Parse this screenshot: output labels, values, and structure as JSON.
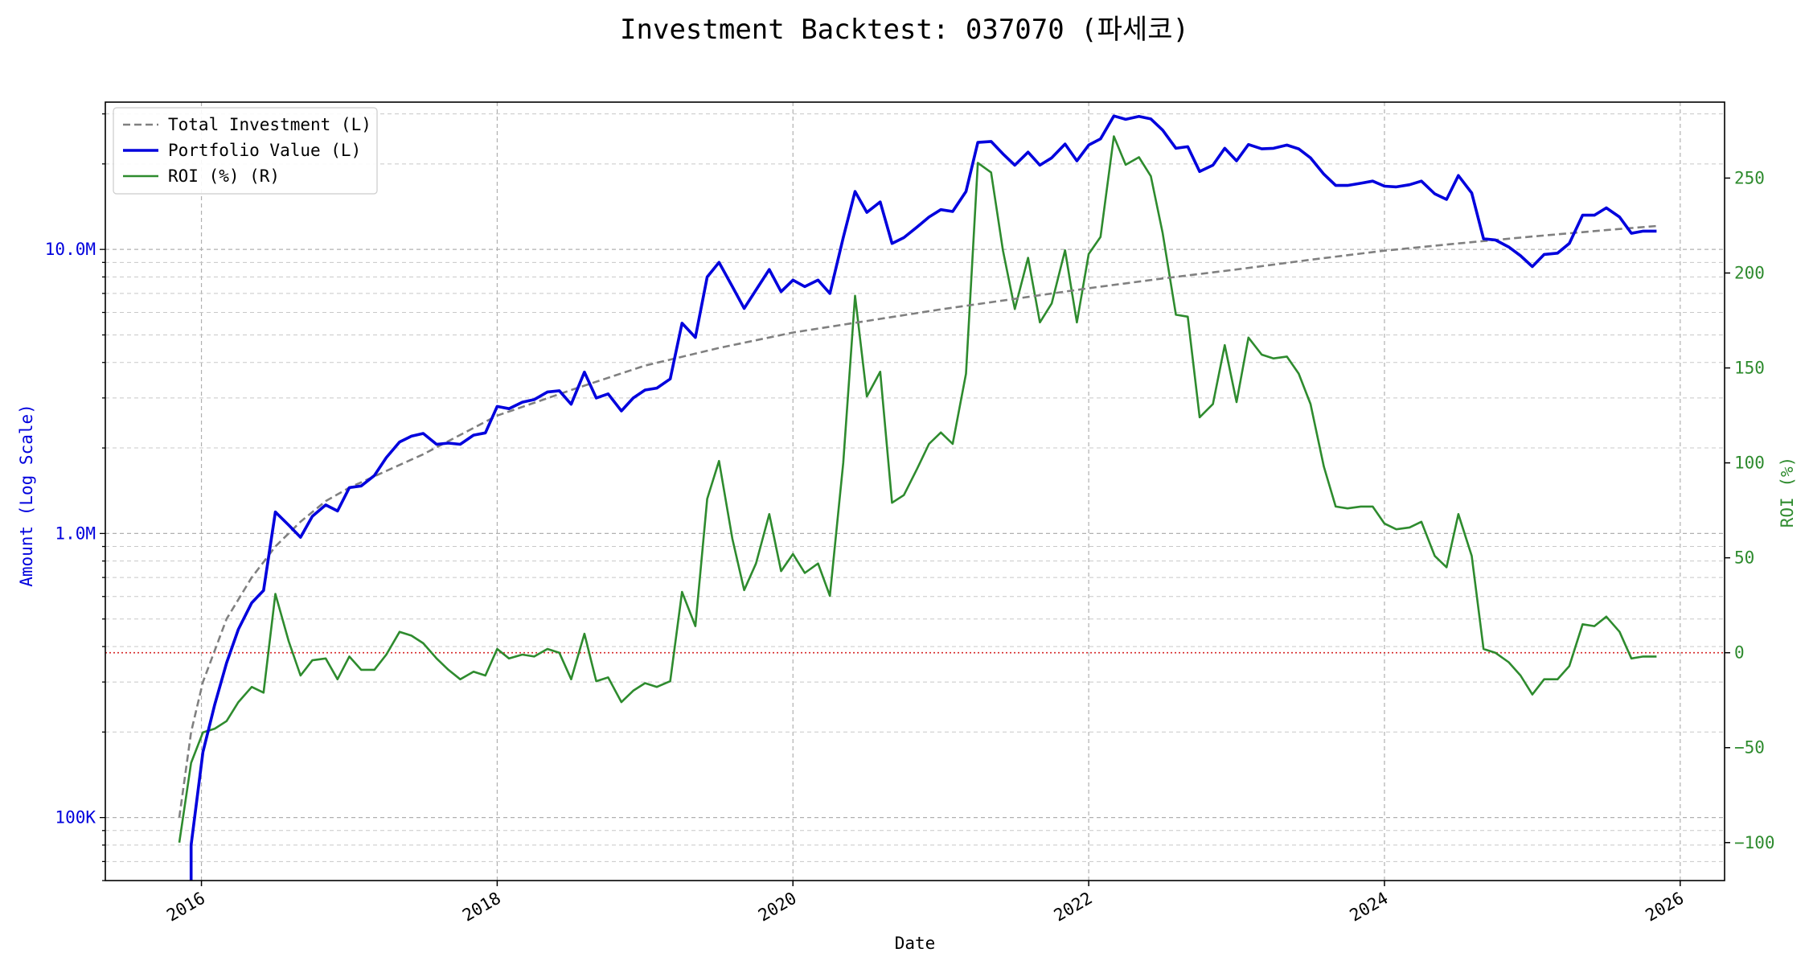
{
  "chart_data": {
    "type": "line",
    "title": "Investment Backtest: 037070 (파세코)",
    "xlabel": "Date",
    "ylabel_left": "Amount (Log Scale)",
    "ylabel_right": "ROI (%)",
    "y_left_scale": "log",
    "y_left_range": [
      60000,
      33000000
    ],
    "y_right_range": [
      -120,
      290
    ],
    "x_range": [
      2015.35,
      2026.3
    ],
    "grid": true,
    "legend_position": "top-left",
    "x_ticks": [
      {
        "value": 2016,
        "label": "2016"
      },
      {
        "value": 2018,
        "label": "2018"
      },
      {
        "value": 2020,
        "label": "2020"
      },
      {
        "value": 2022,
        "label": "2022"
      },
      {
        "value": 2024,
        "label": "2024"
      },
      {
        "value": 2026,
        "label": "2026"
      }
    ],
    "y_left_ticks": [
      {
        "value": 100000,
        "label": "100K"
      },
      {
        "value": 1000000,
        "label": "1.0M"
      },
      {
        "value": 10000000,
        "label": "10.0M"
      }
    ],
    "y_right_ticks": [
      {
        "value": -100,
        "label": "−100"
      },
      {
        "value": -50,
        "label": "−50"
      },
      {
        "value": 0,
        "label": "0"
      },
      {
        "value": 50,
        "label": "50"
      },
      {
        "value": 100,
        "label": "100"
      },
      {
        "value": 150,
        "label": "150"
      },
      {
        "value": 200,
        "label": "200"
      },
      {
        "value": 250,
        "label": "250"
      }
    ],
    "zero_reference": {
      "value": 0,
      "color": "#d62728"
    },
    "series": [
      {
        "name": "Total Investment (L)",
        "axis": "left",
        "color": "#808080",
        "style": "dashed",
        "points": [
          [
            2015.85,
            100000
          ],
          [
            2015.93,
            200000
          ],
          [
            2016.01,
            300000
          ],
          [
            2016.17,
            500000
          ],
          [
            2016.34,
            700000
          ],
          [
            2016.5,
            900000
          ],
          [
            2016.67,
            1100000
          ],
          [
            2016.84,
            1300000
          ],
          [
            2017.0,
            1450000
          ],
          [
            2017.5,
            1900000
          ],
          [
            2018.0,
            2600000
          ],
          [
            2018.5,
            3200000
          ],
          [
            2019.0,
            3900000
          ],
          [
            2019.5,
            4500000
          ],
          [
            2020.0,
            5100000
          ],
          [
            2020.5,
            5600000
          ],
          [
            2021.0,
            6150000
          ],
          [
            2021.5,
            6700000
          ],
          [
            2022.0,
            7300000
          ],
          [
            2022.5,
            7900000
          ],
          [
            2023.0,
            8500000
          ],
          [
            2023.5,
            9200000
          ],
          [
            2024.0,
            9900000
          ],
          [
            2024.5,
            10500000
          ],
          [
            2025.0,
            11100000
          ],
          [
            2025.5,
            11700000
          ],
          [
            2025.85,
            12100000
          ]
        ]
      },
      {
        "name": "Portfolio Value (L)",
        "axis": "left",
        "color": "#0000dd",
        "style": "solid",
        "points": [
          [
            2015.93,
            50000
          ],
          [
            2015.93,
            80000
          ],
          [
            2016.01,
            170000
          ],
          [
            2016.09,
            250000
          ],
          [
            2016.17,
            350000
          ],
          [
            2016.25,
            460000
          ],
          [
            2016.34,
            570000
          ],
          [
            2016.42,
            630000
          ],
          [
            2016.5,
            1190000
          ],
          [
            2016.59,
            1070000
          ],
          [
            2016.67,
            970000
          ],
          [
            2016.75,
            1150000
          ],
          [
            2016.84,
            1260000
          ],
          [
            2016.92,
            1200000
          ],
          [
            2017.0,
            1450000
          ],
          [
            2017.08,
            1470000
          ],
          [
            2017.17,
            1600000
          ],
          [
            2017.25,
            1850000
          ],
          [
            2017.34,
            2100000
          ],
          [
            2017.42,
            2200000
          ],
          [
            2017.5,
            2250000
          ],
          [
            2017.59,
            2060000
          ],
          [
            2017.67,
            2080000
          ],
          [
            2017.75,
            2060000
          ],
          [
            2017.84,
            2220000
          ],
          [
            2017.92,
            2260000
          ],
          [
            2018.0,
            2800000
          ],
          [
            2018.08,
            2750000
          ],
          [
            2018.17,
            2900000
          ],
          [
            2018.25,
            2960000
          ],
          [
            2018.34,
            3150000
          ],
          [
            2018.42,
            3180000
          ],
          [
            2018.5,
            2850000
          ],
          [
            2018.59,
            3700000
          ],
          [
            2018.67,
            3000000
          ],
          [
            2018.75,
            3100000
          ],
          [
            2018.84,
            2700000
          ],
          [
            2018.92,
            3000000
          ],
          [
            2019.0,
            3200000
          ],
          [
            2019.08,
            3250000
          ],
          [
            2019.17,
            3500000
          ],
          [
            2019.25,
            5500000
          ],
          [
            2019.34,
            4900000
          ],
          [
            2019.42,
            8000000
          ],
          [
            2019.5,
            9000000
          ],
          [
            2019.59,
            7400000
          ],
          [
            2019.67,
            6200000
          ],
          [
            2019.75,
            7200000
          ],
          [
            2019.84,
            8500000
          ],
          [
            2019.92,
            7100000
          ],
          [
            2020.0,
            7800000
          ],
          [
            2020.08,
            7400000
          ],
          [
            2020.17,
            7800000
          ],
          [
            2020.25,
            7000000
          ],
          [
            2020.34,
            11000000
          ],
          [
            2020.42,
            16000000
          ],
          [
            2020.5,
            13500000
          ],
          [
            2020.59,
            14700000
          ],
          [
            2020.67,
            10500000
          ],
          [
            2020.75,
            11000000
          ],
          [
            2020.84,
            12000000
          ],
          [
            2020.92,
            13000000
          ],
          [
            2021.0,
            13800000
          ],
          [
            2021.08,
            13600000
          ],
          [
            2021.17,
            16000000
          ],
          [
            2021.25,
            23800000
          ],
          [
            2021.34,
            24000000
          ],
          [
            2021.42,
            21700000
          ],
          [
            2021.5,
            19800000
          ],
          [
            2021.59,
            22000000
          ],
          [
            2021.67,
            19800000
          ],
          [
            2021.75,
            21000000
          ],
          [
            2021.84,
            23500000
          ],
          [
            2021.92,
            20500000
          ],
          [
            2022.0,
            23300000
          ],
          [
            2022.08,
            24500000
          ],
          [
            2022.17,
            29500000
          ],
          [
            2022.25,
            28700000
          ],
          [
            2022.34,
            29400000
          ],
          [
            2022.42,
            28800000
          ],
          [
            2022.5,
            26300000
          ],
          [
            2022.59,
            22700000
          ],
          [
            2022.67,
            23000000
          ],
          [
            2022.75,
            18800000
          ],
          [
            2022.84,
            19800000
          ],
          [
            2022.92,
            22700000
          ],
          [
            2023.0,
            20500000
          ],
          [
            2023.08,
            23400000
          ],
          [
            2023.17,
            22600000
          ],
          [
            2023.25,
            22700000
          ],
          [
            2023.34,
            23300000
          ],
          [
            2023.42,
            22600000
          ],
          [
            2023.5,
            21000000
          ],
          [
            2023.59,
            18400000
          ],
          [
            2023.67,
            16800000
          ],
          [
            2023.75,
            16800000
          ],
          [
            2023.84,
            17100000
          ],
          [
            2023.92,
            17400000
          ],
          [
            2024.0,
            16700000
          ],
          [
            2024.08,
            16600000
          ],
          [
            2024.17,
            16900000
          ],
          [
            2024.25,
            17400000
          ],
          [
            2024.34,
            15700000
          ],
          [
            2024.42,
            15000000
          ],
          [
            2024.5,
            18200000
          ],
          [
            2024.59,
            15800000
          ],
          [
            2024.67,
            10900000
          ],
          [
            2024.75,
            10800000
          ],
          [
            2024.84,
            10200000
          ],
          [
            2024.92,
            9500000
          ],
          [
            2025.0,
            8700000
          ],
          [
            2025.08,
            9600000
          ],
          [
            2025.17,
            9700000
          ],
          [
            2025.25,
            10500000
          ],
          [
            2025.34,
            13200000
          ],
          [
            2025.42,
            13200000
          ],
          [
            2025.5,
            14000000
          ],
          [
            2025.59,
            13000000
          ],
          [
            2025.67,
            11400000
          ],
          [
            2025.75,
            11600000
          ],
          [
            2025.84,
            11600000
          ]
        ]
      },
      {
        "name": "ROI (%) (R)",
        "axis": "right",
        "color": "#2e8b2e",
        "style": "solid",
        "points": [
          [
            2015.85,
            -100
          ],
          [
            2015.93,
            -58
          ],
          [
            2016.01,
            -42
          ],
          [
            2016.09,
            -40
          ],
          [
            2016.17,
            -36
          ],
          [
            2016.25,
            -26
          ],
          [
            2016.34,
            -18
          ],
          [
            2016.42,
            -21
          ],
          [
            2016.5,
            31
          ],
          [
            2016.59,
            6
          ],
          [
            2016.67,
            -12
          ],
          [
            2016.75,
            -4
          ],
          [
            2016.84,
            -3
          ],
          [
            2016.92,
            -14
          ],
          [
            2017.0,
            -2
          ],
          [
            2017.08,
            -9
          ],
          [
            2017.17,
            -9
          ],
          [
            2017.25,
            -1
          ],
          [
            2017.34,
            11
          ],
          [
            2017.42,
            9
          ],
          [
            2017.5,
            5
          ],
          [
            2017.59,
            -3
          ],
          [
            2017.67,
            -9
          ],
          [
            2017.75,
            -14
          ],
          [
            2017.84,
            -10
          ],
          [
            2017.92,
            -12
          ],
          [
            2018.0,
            2
          ],
          [
            2018.08,
            -3
          ],
          [
            2018.17,
            -1
          ],
          [
            2018.25,
            -2
          ],
          [
            2018.34,
            2
          ],
          [
            2018.42,
            0
          ],
          [
            2018.5,
            -14
          ],
          [
            2018.59,
            10
          ],
          [
            2018.67,
            -15
          ],
          [
            2018.75,
            -13
          ],
          [
            2018.84,
            -26
          ],
          [
            2018.92,
            -20
          ],
          [
            2019.0,
            -16
          ],
          [
            2019.08,
            -18
          ],
          [
            2019.17,
            -15
          ],
          [
            2019.25,
            32
          ],
          [
            2019.34,
            14
          ],
          [
            2019.42,
            81
          ],
          [
            2019.5,
            101
          ],
          [
            2019.59,
            60
          ],
          [
            2019.67,
            33
          ],
          [
            2019.75,
            47
          ],
          [
            2019.84,
            73
          ],
          [
            2019.92,
            43
          ],
          [
            2020.0,
            52
          ],
          [
            2020.08,
            42
          ],
          [
            2020.17,
            47
          ],
          [
            2020.25,
            30
          ],
          [
            2020.34,
            100
          ],
          [
            2020.42,
            188
          ],
          [
            2020.5,
            135
          ],
          [
            2020.59,
            148
          ],
          [
            2020.67,
            79
          ],
          [
            2020.75,
            83
          ],
          [
            2020.84,
            97
          ],
          [
            2020.92,
            110
          ],
          [
            2021.0,
            116
          ],
          [
            2021.08,
            110
          ],
          [
            2021.17,
            147
          ],
          [
            2021.25,
            258
          ],
          [
            2021.34,
            253
          ],
          [
            2021.42,
            212
          ],
          [
            2021.5,
            181
          ],
          [
            2021.59,
            208
          ],
          [
            2021.67,
            174
          ],
          [
            2021.75,
            184
          ],
          [
            2021.84,
            212
          ],
          [
            2021.92,
            174
          ],
          [
            2022.0,
            210
          ],
          [
            2022.08,
            219
          ],
          [
            2022.17,
            272
          ],
          [
            2022.25,
            257
          ],
          [
            2022.34,
            261
          ],
          [
            2022.42,
            251
          ],
          [
            2022.5,
            221
          ],
          [
            2022.59,
            178
          ],
          [
            2022.67,
            177
          ],
          [
            2022.75,
            124
          ],
          [
            2022.84,
            131
          ],
          [
            2022.92,
            162
          ],
          [
            2023.0,
            132
          ],
          [
            2023.08,
            166
          ],
          [
            2023.17,
            157
          ],
          [
            2023.25,
            155
          ],
          [
            2023.34,
            156
          ],
          [
            2023.42,
            147
          ],
          [
            2023.5,
            131
          ],
          [
            2023.59,
            98
          ],
          [
            2023.67,
            77
          ],
          [
            2023.75,
            76
          ],
          [
            2023.84,
            77
          ],
          [
            2023.92,
            77
          ],
          [
            2024.0,
            68
          ],
          [
            2024.08,
            65
          ],
          [
            2024.17,
            66
          ],
          [
            2024.25,
            69
          ],
          [
            2024.34,
            51
          ],
          [
            2024.42,
            45
          ],
          [
            2024.5,
            73
          ],
          [
            2024.59,
            51
          ],
          [
            2024.67,
            2
          ],
          [
            2024.75,
            0
          ],
          [
            2024.84,
            -5
          ],
          [
            2024.92,
            -12
          ],
          [
            2025.0,
            -22
          ],
          [
            2025.08,
            -14
          ],
          [
            2025.17,
            -14
          ],
          [
            2025.25,
            -7
          ],
          [
            2025.34,
            15
          ],
          [
            2025.42,
            14
          ],
          [
            2025.5,
            19
          ],
          [
            2025.59,
            11
          ],
          [
            2025.67,
            -3
          ],
          [
            2025.75,
            -2
          ],
          [
            2025.84,
            -2
          ]
        ]
      }
    ]
  }
}
